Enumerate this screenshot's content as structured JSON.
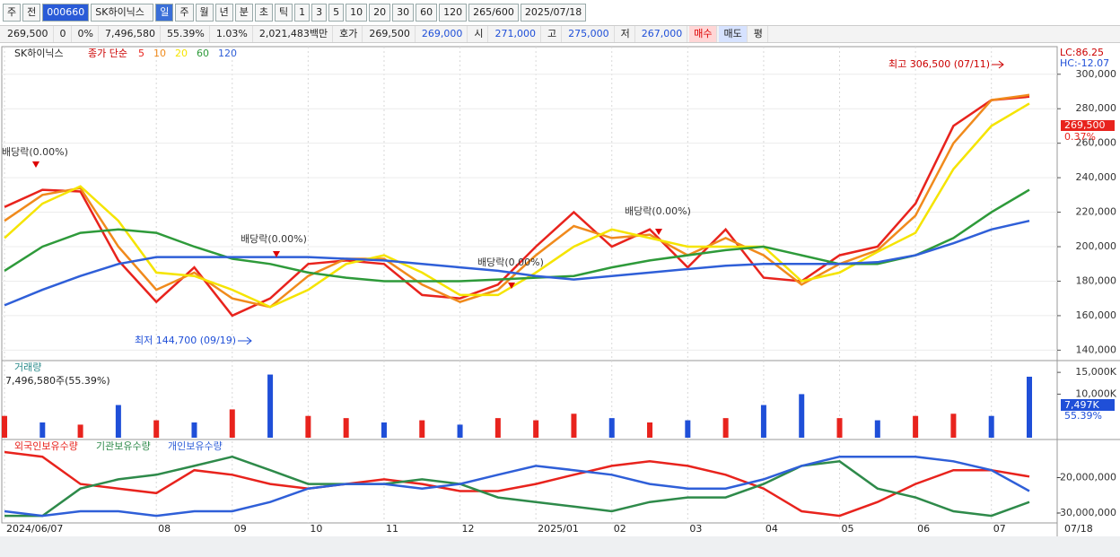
{
  "toolbar": {
    "row1": [
      "주",
      "전",
      "000660",
      "SK하이닉스",
      "일",
      "주",
      "월",
      "년",
      "분",
      "초",
      "틱",
      "1",
      "3",
      "5",
      "10",
      "20",
      "30",
      "60",
      "120",
      "265/600",
      "2025/07/18"
    ],
    "row2": [
      "269,500",
      "0",
      "0%",
      "7,496,580",
      "55.39%",
      "1.03%",
      "2,021,483백만",
      "호가",
      "269,500",
      "269,000",
      "시",
      "271,000",
      "고",
      "275,000",
      "저",
      "267,000",
      "매수",
      "매도",
      "평"
    ]
  },
  "chart_data": [
    {
      "type": "line",
      "title": "SK하이닉스",
      "legend_prefix": "종가 단순",
      "categories": [
        "2024/06/07",
        null,
        null,
        null,
        "08",
        null,
        "09",
        null,
        "10",
        null,
        "11",
        null,
        "12",
        null,
        "2025/01",
        null,
        "02",
        null,
        "03",
        null,
        "04",
        null,
        "05",
        null,
        "06",
        null,
        "07",
        null
      ],
      "last_label": "07/18",
      "series": [
        {
          "name": "5",
          "color": "#e8231d",
          "values": [
            223000,
            233000,
            232000,
            192000,
            168000,
            188000,
            160000,
            170000,
            190000,
            192000,
            190000,
            172000,
            170000,
            178000,
            200000,
            220000,
            200000,
            210000,
            188000,
            210000,
            182000,
            180000,
            195000,
            200000,
            225000,
            270000,
            285000,
            287000
          ]
        },
        {
          "name": "10",
          "color": "#f08a1c",
          "values": [
            215000,
            230000,
            234000,
            200000,
            175000,
            185000,
            170000,
            165000,
            183000,
            193000,
            193000,
            178000,
            168000,
            175000,
            195000,
            212000,
            205000,
            207000,
            195000,
            205000,
            195000,
            178000,
            190000,
            198000,
            218000,
            260000,
            285000,
            288000
          ]
        },
        {
          "name": "20",
          "color": "#f5e400",
          "values": [
            205000,
            225000,
            235000,
            215000,
            185000,
            183000,
            175000,
            165000,
            175000,
            190000,
            195000,
            185000,
            172000,
            172000,
            185000,
            200000,
            210000,
            205000,
            200000,
            200000,
            200000,
            180000,
            185000,
            197000,
            208000,
            245000,
            270000,
            283000
          ]
        },
        {
          "name": "60",
          "color": "#2e9a3a",
          "values": [
            186000,
            200000,
            208000,
            210000,
            208000,
            200000,
            193000,
            190000,
            185000,
            182000,
            180000,
            180000,
            180000,
            181000,
            182000,
            183000,
            188000,
            192000,
            195000,
            198000,
            200000,
            195000,
            190000,
            190000,
            195000,
            205000,
            220000,
            233000
          ]
        },
        {
          "name": "120",
          "color": "#2f5fd8",
          "values": [
            166000,
            175000,
            183000,
            190000,
            194000,
            194000,
            194000,
            194000,
            194000,
            193000,
            192000,
            190000,
            188000,
            186000,
            183000,
            181000,
            183000,
            185000,
            187000,
            189000,
            190000,
            190000,
            190000,
            191000,
            195000,
            202000,
            210000,
            215000
          ]
        }
      ],
      "ylim": [
        135000,
        316000
      ],
      "yticks": [
        {
          "value": 140000,
          "label": "140,000"
        },
        {
          "value": 160000,
          "label": "160,000"
        },
        {
          "value": 180000,
          "label": "180,000"
        },
        {
          "value": 200000,
          "label": "200,000"
        },
        {
          "value": 220000,
          "label": "220,000"
        },
        {
          "value": 240000,
          "label": "240,000"
        },
        {
          "value": 260000,
          "label": "260,000"
        },
        {
          "value": 280000,
          "label": "280,000"
        },
        {
          "value": 300000,
          "label": "300,000"
        }
      ],
      "grid": true,
      "annotations": [
        "최고 306,500 (07/11)",
        "최저 144,700 (09/19)",
        "배당락(0.00%)",
        "배당락(0.00%)",
        "배당락(0.00%)",
        "배당락(0.00%)"
      ],
      "side_labels": [
        "LC:86.25",
        "HC:-12.07"
      ],
      "current_label": "269,500",
      "change_label": "0.37%"
    },
    {
      "type": "bar",
      "title": "거래량",
      "info": "7,496,580주(55.39%)",
      "values": [
        5000,
        3500,
        3000,
        7500,
        4000,
        3500,
        6500,
        14500,
        5000,
        4500,
        3500,
        4000,
        3000,
        4500,
        4000,
        5500,
        4500,
        3500,
        4000,
        4500,
        7500,
        10000,
        4500,
        4000,
        5000,
        5500,
        5000,
        14000
      ],
      "colors": [
        "#e8231d",
        "#1f4fd8",
        "#e8231d",
        "#1f4fd8",
        "#e8231d",
        "#1f4fd8",
        "#e8231d",
        "#1f4fd8",
        "#e8231d",
        "#e8231d",
        "#1f4fd8",
        "#e8231d",
        "#1f4fd8",
        "#e8231d",
        "#e8231d",
        "#e8231d",
        "#1f4fd8",
        "#e8231d",
        "#1f4fd8",
        "#e8231d",
        "#1f4fd8",
        "#1f4fd8",
        "#e8231d",
        "#1f4fd8",
        "#e8231d",
        "#e8231d",
        "#1f4fd8",
        "#1f4fd8"
      ],
      "ylim": [
        0,
        17500
      ],
      "yticks": [
        {
          "value": 10000,
          "label": "10,000K"
        },
        {
          "value": 15000,
          "label": "15,000K"
        }
      ],
      "current_label": "7,497K",
      "ratio_label": "55.39%"
    },
    {
      "type": "line",
      "series": [
        {
          "name": "외국인보유수량",
          "color": "#e8231d",
          "values": [
            -12800000,
            -14100000,
            -21800000,
            -23100000,
            -24400000,
            -17900000,
            -19200000,
            -21800000,
            -23100000,
            -21800000,
            -20500000,
            -21800000,
            -23800000,
            -23800000,
            -21800000,
            -19200000,
            -16700000,
            -15400000,
            -16700000,
            -19200000,
            -23100000,
            -29500000,
            -30800000,
            -26900000,
            -21800000,
            -17900000,
            -17900000,
            -19700000
          ]
        },
        {
          "name": "기관보유수량",
          "color": "#2e8a4a",
          "values": [
            -30800000,
            -30800000,
            -23100000,
            -20500000,
            -19200000,
            -16700000,
            -14100000,
            -17900000,
            -21800000,
            -21800000,
            -21800000,
            -20500000,
            -21800000,
            -25600000,
            -26900000,
            -28200000,
            -29500000,
            -26900000,
            -25600000,
            -25600000,
            -21800000,
            -16700000,
            -15400000,
            -23100000,
            -25600000,
            -29500000,
            -30800000,
            -26900000
          ]
        },
        {
          "name": "개인보유수량",
          "color": "#2f5fd8",
          "values": [
            -29500000,
            -30800000,
            -29500000,
            -29500000,
            -30800000,
            -29500000,
            -29500000,
            -26900000,
            -23100000,
            -21800000,
            -21800000,
            -23100000,
            -21800000,
            -19200000,
            -16700000,
            -17900000,
            -19200000,
            -21800000,
            -23100000,
            -23100000,
            -20500000,
            -16700000,
            -14100000,
            -14100000,
            -14100000,
            -15400000,
            -17900000,
            -23800000
          ]
        }
      ],
      "ylim": [
        -32800000,
        -9500000
      ],
      "yticks": [
        {
          "value": -30000000,
          "label": "-30,000,000"
        },
        {
          "value": -20000000,
          "label": "-20,000,000"
        }
      ]
    }
  ]
}
